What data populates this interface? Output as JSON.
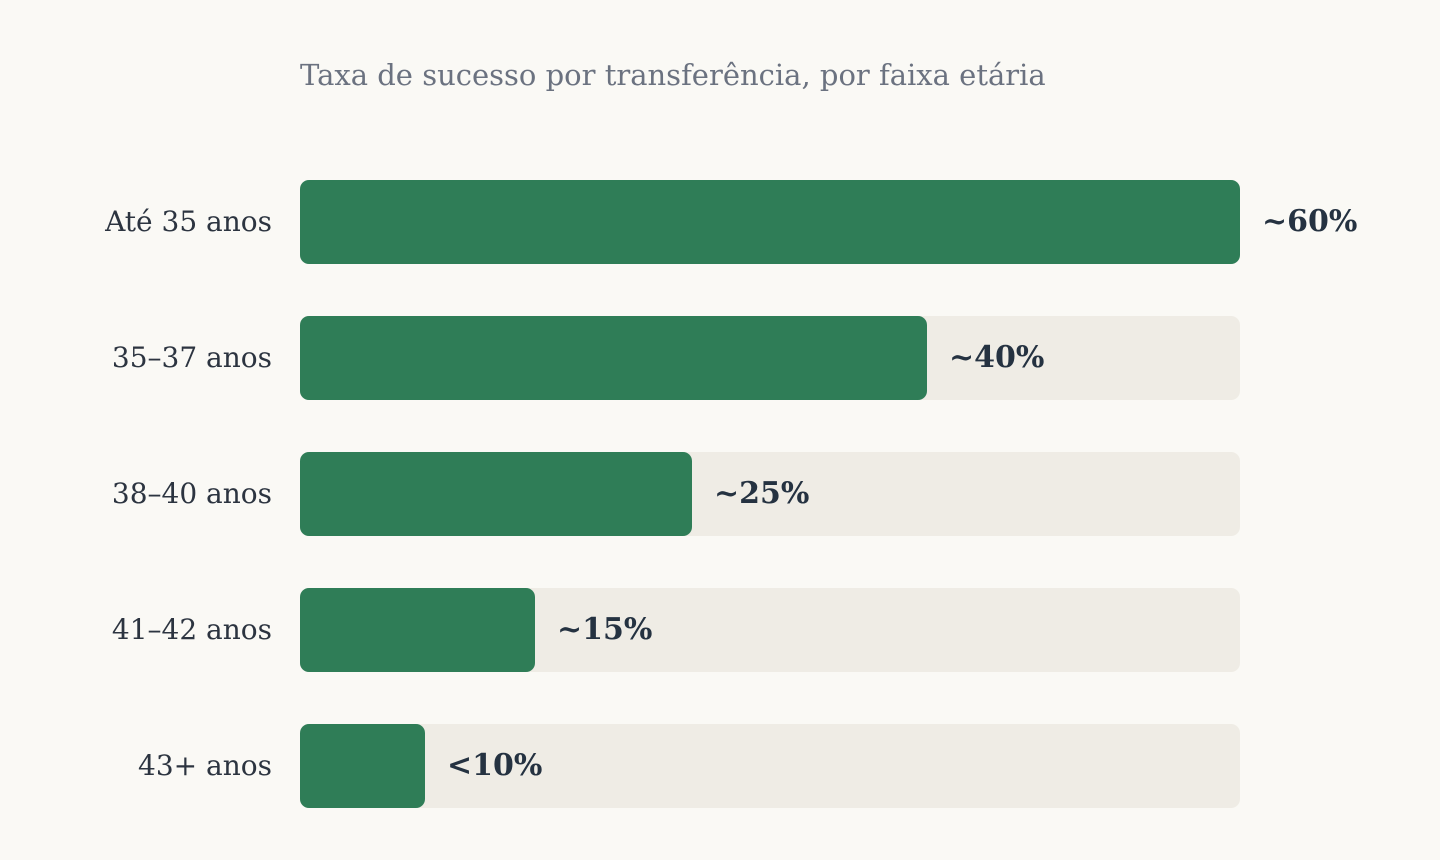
{
  "chart_data": {
    "type": "bar",
    "orientation": "horizontal",
    "title": "Taxa de sucesso por transferência, por faixa etária",
    "categories": [
      "Até 35 anos",
      "35–37 anos",
      "38–40 anos",
      "41–42 anos",
      "43+ anos"
    ],
    "values": [
      60,
      40,
      25,
      15,
      8
    ],
    "value_labels": [
      "~60%",
      "~40%",
      "~25%",
      "~15%",
      "<10%"
    ],
    "xlim": [
      0,
      60
    ],
    "grid": false,
    "legend": "none",
    "colors": {
      "bar": "#2f7d57",
      "track": "#efece5",
      "background": "#faf9f5",
      "title": "#6b7280",
      "label": "#2c3440"
    }
  }
}
